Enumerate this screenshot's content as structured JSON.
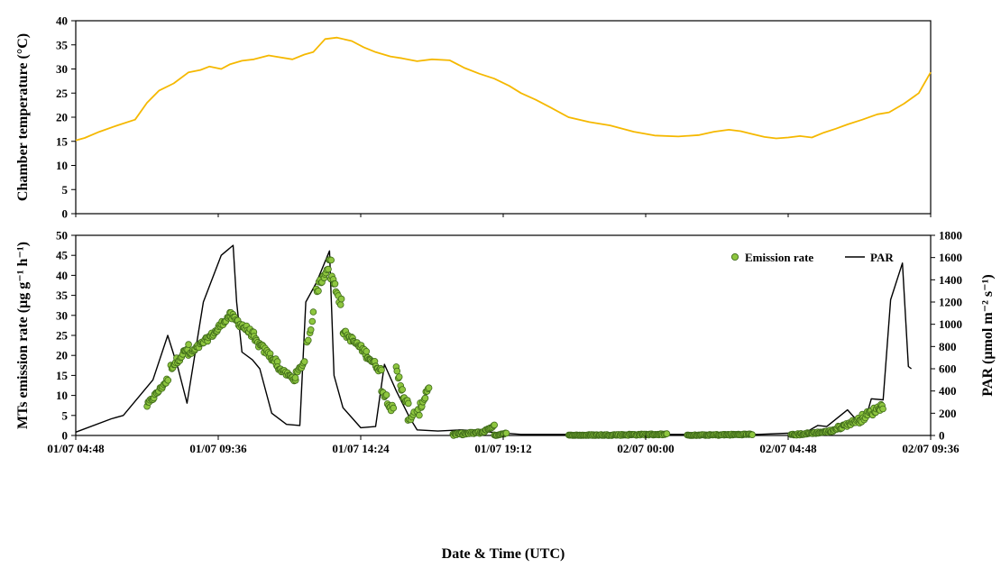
{
  "chart_data": [
    {
      "type": "line",
      "ylabel": "Chamber temperature (°C)",
      "ylim": [
        0,
        40
      ],
      "yticks": [
        0,
        5,
        10,
        15,
        20,
        25,
        30,
        35,
        40
      ],
      "xlim_hours": [
        0,
        28.8
      ],
      "grid": false,
      "colors": {
        "temperature": "#f5b800"
      },
      "series": [
        {
          "x": [
            0,
            0.3,
            0.8,
            1.4,
            2.0,
            2.4,
            2.8,
            3.3,
            3.8,
            4.2,
            4.5,
            4.9,
            5.2,
            5.6,
            6.0,
            6.5,
            6.8,
            7.3,
            7.7,
            8.0,
            8.4,
            8.8,
            9.3,
            9.7,
            10.1,
            10.6,
            11.0,
            11.5,
            12.0,
            12.6,
            13.1,
            13.6,
            14.1,
            14.6,
            15.0,
            15.5,
            16.0,
            16.6,
            17.3,
            18.0,
            18.8,
            19.5,
            20.3,
            21.0,
            21.5,
            22.0,
            22.4,
            22.8,
            23.2,
            23.6,
            24.0,
            24.4,
            24.8,
            25.2,
            25.6,
            26.0,
            26.5,
            27.0,
            27.4,
            27.9,
            28.4,
            28.8
          ],
          "y": [
            15.2,
            15.7,
            17.0,
            18.3,
            19.5,
            23.0,
            25.5,
            27.0,
            29.3,
            29.8,
            30.5,
            30.0,
            31.0,
            31.7,
            32.0,
            32.8,
            32.5,
            32.0,
            33.0,
            33.5,
            36.2,
            36.5,
            35.8,
            34.5,
            33.5,
            32.6,
            32.2,
            31.6,
            32.0,
            31.8,
            30.2,
            29.0,
            28.0,
            26.5,
            25.0,
            23.6,
            22.0,
            20.0,
            19.0,
            18.3,
            17.0,
            16.2,
            16.0,
            16.3,
            17.0,
            17.4,
            17.1,
            16.5,
            15.9,
            15.6,
            15.8,
            16.1,
            15.8,
            16.8,
            17.6,
            18.5,
            19.5,
            20.6,
            21.0,
            22.8,
            25.0,
            29.3
          ]
        }
      ]
    },
    {
      "type": "scatter+line",
      "xlabel": "Date & Time (UTC)",
      "ylabel": "MTs emission rate (µg g⁻¹ h⁻¹)",
      "y2label": "PAR (µmol m⁻² s⁻¹)",
      "ylim": [
        0,
        50
      ],
      "yticks": [
        0,
        5,
        10,
        15,
        20,
        25,
        30,
        35,
        40,
        45,
        50
      ],
      "y2lim": [
        0,
        1800
      ],
      "y2ticks": [
        0,
        200,
        400,
        600,
        800,
        1000,
        1200,
        1400,
        1600,
        1800
      ],
      "x_tick_labels": [
        "01/07 04:48",
        "01/07 09:36",
        "01/07 14:24",
        "01/07 19:12",
        "02/07 00:00",
        "02/07 04:48",
        "02/07 09:36"
      ],
      "xlim_hours": [
        0,
        28.8
      ],
      "legend": [
        "Emission rate",
        "PAR"
      ],
      "legend_position": "top-right",
      "grid": false,
      "colors": {
        "emission_fill": "#8ec63f",
        "emission_stroke": "#3f6b1a",
        "par": "#000000"
      },
      "emission_segments": [
        {
          "x": [
            2.4,
            3.1
          ],
          "y": [
            7.5,
            14.0
          ],
          "spread": 1.1
        },
        {
          "x": [
            3.2,
            3.8
          ],
          "y": [
            17.0,
            22.0
          ],
          "spread": 1.6
        },
        {
          "x": [
            3.8,
            4.8
          ],
          "y": [
            20.0,
            26.5
          ],
          "spread": 1.3
        },
        {
          "x": [
            4.8,
            5.2
          ],
          "y": [
            27.0,
            30.0
          ],
          "spread": 1.2
        },
        {
          "x": [
            5.2,
            6.0
          ],
          "y": [
            30.0,
            25.0
          ],
          "spread": 1.8
        },
        {
          "x": [
            6.0,
            6.8
          ],
          "y": [
            24.0,
            18.0
          ],
          "spread": 1.6
        },
        {
          "x": [
            6.8,
            7.4
          ],
          "y": [
            17.0,
            13.8
          ],
          "spread": 1.0
        },
        {
          "x": [
            7.4,
            7.7
          ],
          "y": [
            15.0,
            18.5
          ],
          "spread": 1.2
        },
        {
          "x": [
            7.8,
            8.0
          ],
          "y": [
            23.0,
            30.0
          ],
          "spread": 1.8
        },
        {
          "x": [
            8.1,
            8.6
          ],
          "y": [
            36.0,
            44.0
          ],
          "spread": 2.2
        },
        {
          "x": [
            8.6,
            8.95
          ],
          "y": [
            40.0,
            33.0
          ],
          "spread": 2.5
        },
        {
          "x": [
            9.0,
            9.8
          ],
          "y": [
            26.0,
            20.5
          ],
          "spread": 1.5
        },
        {
          "x": [
            9.8,
            10.3
          ],
          "y": [
            20.0,
            16.0
          ],
          "spread": 1.5
        },
        {
          "x": [
            10.3,
            10.7
          ],
          "y": [
            12.0,
            6.0
          ],
          "spread": 2.2
        },
        {
          "x": [
            10.8,
            11.2
          ],
          "y": [
            16.0,
            7.0
          ],
          "spread": 3.0
        },
        {
          "x": [
            11.2,
            11.4
          ],
          "y": [
            3.5,
            5.5
          ],
          "spread": 1.0
        },
        {
          "x": [
            11.5,
            11.9
          ],
          "y": [
            5.0,
            12.5
          ],
          "spread": 2.5
        },
        {
          "x": [
            12.7,
            13.7
          ],
          "y": [
            0.2,
            0.8
          ],
          "spread": 0.5
        },
        {
          "x": [
            13.7,
            14.1
          ],
          "y": [
            0.8,
            2.5
          ],
          "spread": 0.4
        },
        {
          "x": [
            14.1,
            14.5
          ],
          "y": [
            0.0,
            0.6
          ],
          "spread": 0.3
        },
        {
          "x": [
            16.6,
            19.9
          ],
          "y": [
            0.0,
            0.3
          ],
          "spread": 0.3
        },
        {
          "x": [
            20.6,
            22.8
          ],
          "y": [
            0.0,
            0.3
          ],
          "spread": 0.3
        },
        {
          "x": [
            24.1,
            25.4
          ],
          "y": [
            0.1,
            1.0
          ],
          "spread": 0.4
        },
        {
          "x": [
            25.4,
            26.4
          ],
          "y": [
            1.0,
            4.0
          ],
          "spread": 1.0
        },
        {
          "x": [
            26.4,
            27.2
          ],
          "y": [
            4.0,
            7.5
          ],
          "spread": 1.8
        }
      ],
      "par_series": {
        "x": [
          0,
          1.2,
          1.6,
          2.6,
          3.1,
          3.45,
          3.75,
          4.3,
          4.9,
          5.3,
          5.42,
          5.6,
          5.95,
          6.2,
          6.6,
          7.1,
          7.55,
          7.75,
          8.1,
          8.55,
          8.7,
          9.0,
          9.6,
          10.1,
          10.4,
          10.8,
          11.25,
          11.5,
          12.2,
          13.0,
          14.0,
          15.0,
          16.0,
          18.0,
          20.0,
          23.0,
          24.0,
          24.6,
          25.0,
          25.3,
          26.0,
          26.3,
          26.6,
          26.8,
          27.2,
          27.45,
          27.85,
          28.05,
          28.15
        ],
        "y": [
          30,
          150,
          180,
          500,
          900,
          600,
          290,
          1200,
          1620,
          1710,
          1200,
          750,
          680,
          600,
          200,
          100,
          90,
          1200,
          1370,
          1660,
          540,
          250,
          70,
          80,
          640,
          400,
          160,
          50,
          40,
          50,
          30,
          10,
          10,
          10,
          10,
          10,
          20,
          30,
          90,
          80,
          230,
          140,
          140,
          330,
          320,
          1220,
          1550,
          620,
          600
        ]
      }
    }
  ]
}
